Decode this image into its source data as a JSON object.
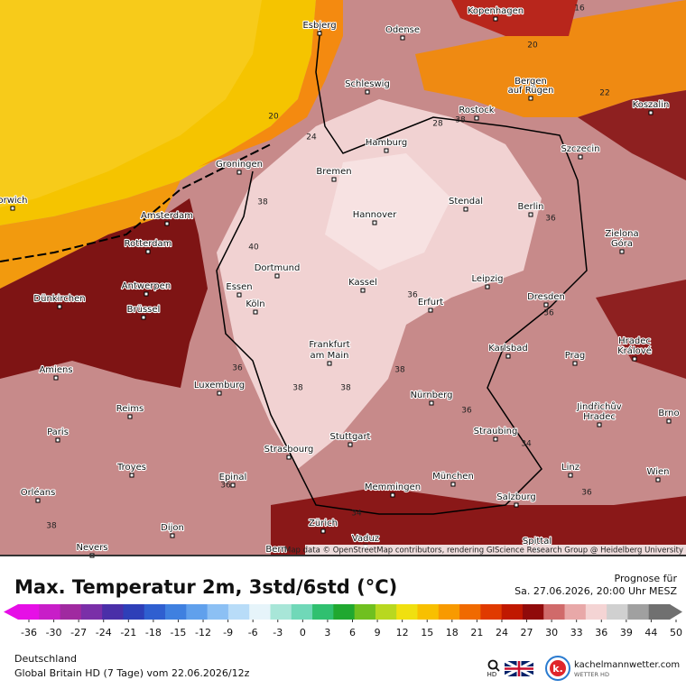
{
  "map": {
    "cities": [
      "Esbjerg",
      "Odense",
      "Kopenhagen",
      "Schleswig",
      "Bergen",
      "auf Rügen",
      "Rostock",
      "Koszalin",
      "Hamburg",
      "Szczecin",
      "Groningen",
      "Bremen",
      "orwich",
      "Amsterdam",
      "Stendal",
      "Berlin",
      "Hannover",
      "Zielona",
      "Góra",
      "Rotterdam",
      "Dortmund",
      "Essen",
      "Kassel",
      "Leipzig",
      "Antwerpen",
      "Dünkirchen",
      "Köln",
      "Erfurt",
      "Dresden",
      "Brüssel",
      "Hradec",
      "Králové",
      "Frankfurt",
      "am Main",
      "Karlsbad",
      "Prag",
      "Amiens",
      "Luxemburg",
      "Nürnberg",
      "Jindřichův",
      "Hradec",
      "Brno",
      "Reims",
      "Paris",
      "Stuttgart",
      "Straubing",
      "Strasbourg",
      "Troyes",
      "Epinal",
      "München",
      "Linz",
      "Wien",
      "Memmingen",
      "Orléans",
      "Salzburg",
      "Zürich",
      "Dijon",
      "Vaduz",
      "Spittal",
      "Nevers",
      "Bern"
    ],
    "contour_labels": [
      16,
      20,
      22,
      20,
      38,
      24,
      38,
      40,
      36,
      36,
      38,
      38,
      38,
      36,
      36,
      34,
      36,
      36,
      38,
      34,
      36,
      28
    ],
    "attribution": "Map data © OpenStreetMap contributors, rendering GIScience Research Group @ Heidelberg University"
  },
  "footer": {
    "title": "Max. Temperatur 2m, 3std/6std (°C)",
    "forecast_label": "Prognose für",
    "forecast_time": "Sa. 27.06.2026, 20:00 Uhr MESZ",
    "colorbar_ticks": [
      -36,
      -30,
      -27,
      -24,
      -21,
      -18,
      -15,
      -12,
      -9,
      -6,
      -3,
      0,
      3,
      6,
      9,
      12,
      15,
      18,
      21,
      24,
      27,
      30,
      33,
      36,
      39,
      44,
      50
    ],
    "region": "Deutschland",
    "model": "Global Britain HD (7 Tage) vom  22.06.2026/12z",
    "search_label": "HD",
    "brand": "kachelmannwetter.com",
    "brand_sub": "WETTER HD"
  }
}
